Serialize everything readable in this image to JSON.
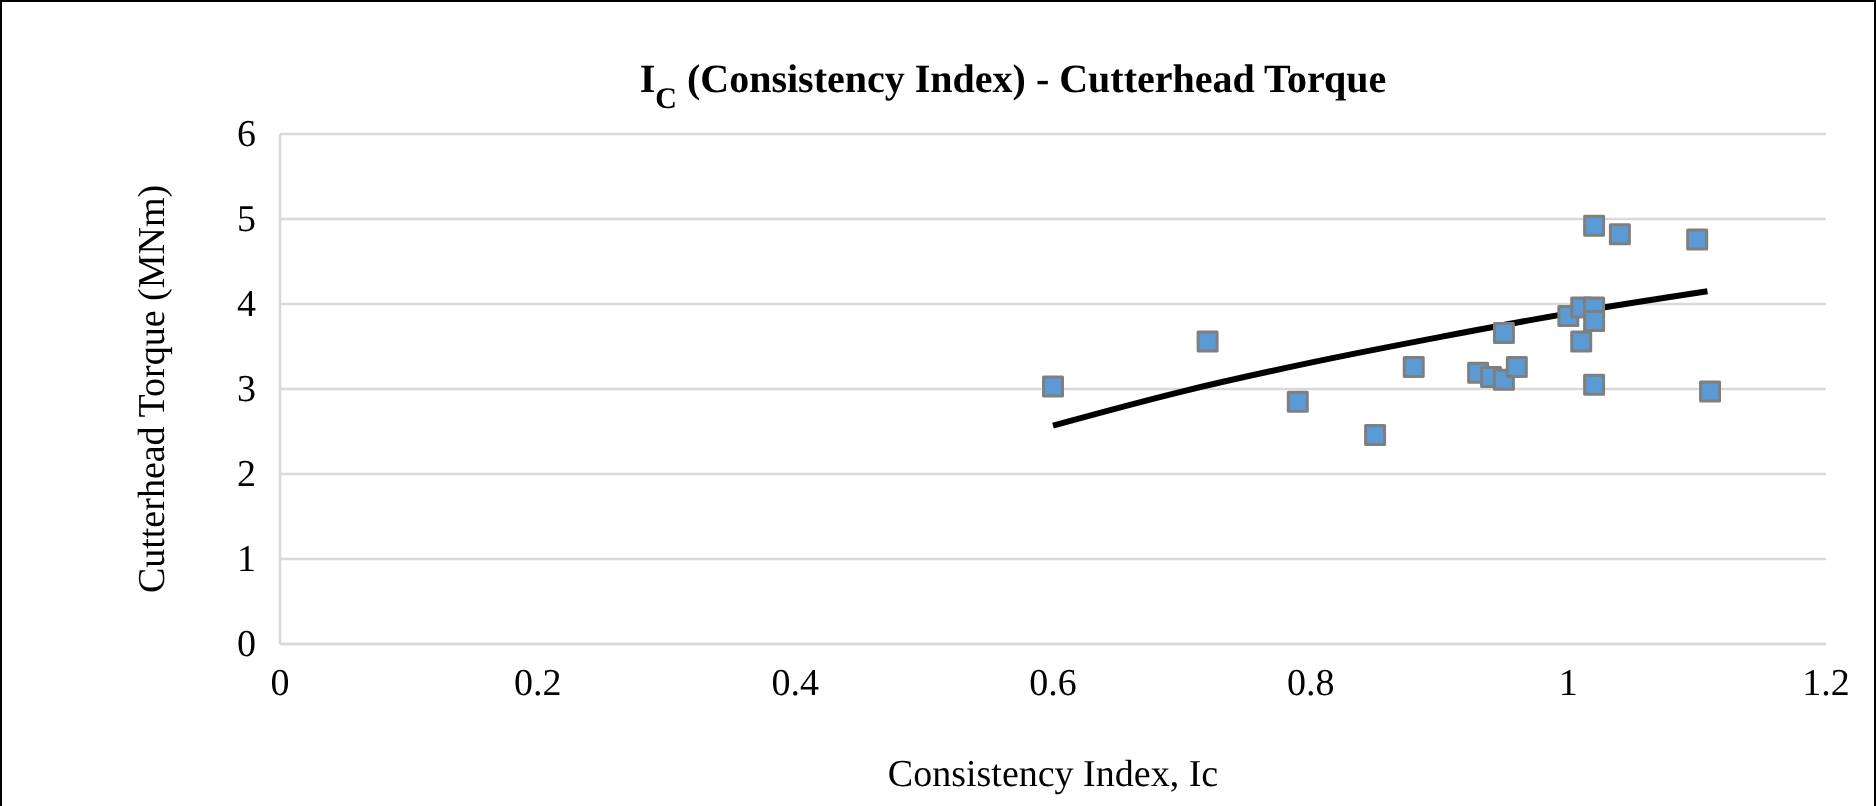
{
  "chart_data": {
    "type": "scatter",
    "title": "I$_{C}$ (Consistency Index) - Cutterhead Torque",
    "xlabel": "Consistency Index, Ic",
    "ylabel": "Cutterhead Torque (MNm)",
    "xlim": [
      0,
      1.2
    ],
    "xticks": [
      0,
      0.2,
      0.4,
      0.6,
      0.8,
      1,
      1.2
    ],
    "ylim": [
      0,
      6
    ],
    "yticks": [
      0,
      1,
      2,
      3,
      4,
      5,
      6
    ],
    "grid": "y",
    "series": [
      {
        "type": "line",
        "color": "#000000",
        "marker": "none",
        "x": [
          0.6,
          0.7,
          0.8,
          0.9,
          1.0,
          1.108
        ],
        "values": [
          2.57,
          2.97,
          3.31,
          3.61,
          3.89,
          4.15
        ]
      },
      {
        "color": "#5b9bd5",
        "marker": "square",
        "x": [
          0.6,
          0.72,
          0.79,
          0.85,
          0.88,
          0.93,
          0.94,
          0.95,
          0.96,
          0.95,
          1.0,
          1.01,
          1.02,
          1.02,
          1.01,
          1.02,
          1.02,
          1.04,
          1.1,
          1.11
        ],
        "values": [
          3.03,
          3.56,
          2.85,
          2.46,
          3.26,
          3.19,
          3.14,
          3.11,
          3.26,
          3.66,
          3.86,
          3.96,
          3.96,
          3.8,
          3.56,
          3.05,
          4.92,
          4.82,
          4.76,
          2.97
        ]
      }
    ]
  }
}
